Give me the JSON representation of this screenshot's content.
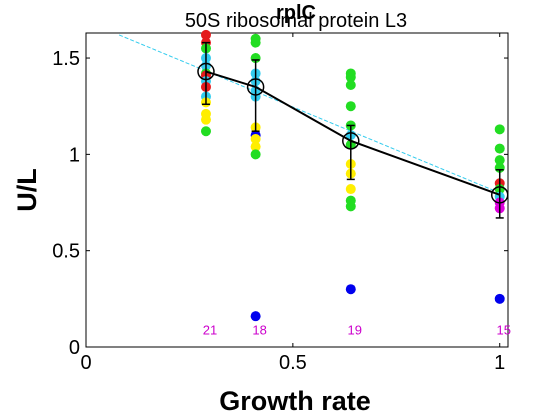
{
  "chart_data": {
    "type": "scatter",
    "title": "rplC",
    "subtitle": "50S ribosomal protein L3",
    "xlabel": "Growth rate",
    "ylabel": "U/L",
    "xlim": [
      0,
      1.02
    ],
    "ylim": [
      0,
      1.63
    ],
    "xticks": [
      {
        "value": 0,
        "label": "0"
      },
      {
        "value": 0.5,
        "label": "0.5"
      },
      {
        "value": 1,
        "label": "1"
      }
    ],
    "yticks": [
      {
        "value": 0,
        "label": "0"
      },
      {
        "value": 0.5,
        "label": "0.5"
      },
      {
        "value": 1,
        "label": "1"
      },
      {
        "value": 1.5,
        "label": "1.5"
      }
    ],
    "grid": false,
    "colors": {
      "red": "#e41a1c",
      "cyan": "#33ccee",
      "yellow": "#ffee00",
      "green": "#22dd22",
      "blue": "#0000ee",
      "magenta": "#dd00dd",
      "mean_line": "#000000",
      "fit_line": "#33ccee",
      "count_text": "#cc00cc"
    },
    "points": [
      {
        "x": 0.29,
        "y": 1.62,
        "color": "red"
      },
      {
        "x": 0.29,
        "y": 1.58,
        "color": "red"
      },
      {
        "x": 0.29,
        "y": 1.55,
        "color": "green"
      },
      {
        "x": 0.29,
        "y": 1.5,
        "color": "cyan"
      },
      {
        "x": 0.29,
        "y": 1.46,
        "color": "cyan"
      },
      {
        "x": 0.29,
        "y": 1.42,
        "color": "green"
      },
      {
        "x": 0.29,
        "y": 1.41,
        "color": "red"
      },
      {
        "x": 0.29,
        "y": 1.38,
        "color": "cyan"
      },
      {
        "x": 0.29,
        "y": 1.35,
        "color": "red"
      },
      {
        "x": 0.29,
        "y": 1.3,
        "color": "cyan"
      },
      {
        "x": 0.29,
        "y": 1.27,
        "color": "yellow"
      },
      {
        "x": 0.29,
        "y": 1.21,
        "color": "yellow"
      },
      {
        "x": 0.29,
        "y": 1.18,
        "color": "yellow"
      },
      {
        "x": 0.29,
        "y": 1.12,
        "color": "green"
      },
      {
        "x": 0.41,
        "y": 1.6,
        "color": "green"
      },
      {
        "x": 0.41,
        "y": 1.58,
        "color": "green"
      },
      {
        "x": 0.41,
        "y": 1.5,
        "color": "green"
      },
      {
        "x": 0.41,
        "y": 1.42,
        "color": "cyan"
      },
      {
        "x": 0.41,
        "y": 1.38,
        "color": "cyan"
      },
      {
        "x": 0.41,
        "y": 1.33,
        "color": "cyan"
      },
      {
        "x": 0.41,
        "y": 1.3,
        "color": "cyan"
      },
      {
        "x": 0.41,
        "y": 1.14,
        "color": "yellow"
      },
      {
        "x": 0.41,
        "y": 1.1,
        "color": "blue"
      },
      {
        "x": 0.41,
        "y": 1.08,
        "color": "yellow"
      },
      {
        "x": 0.41,
        "y": 1.04,
        "color": "yellow"
      },
      {
        "x": 0.41,
        "y": 1.0,
        "color": "green"
      },
      {
        "x": 0.41,
        "y": 0.16,
        "color": "blue"
      },
      {
        "x": 0.64,
        "y": 1.42,
        "color": "green"
      },
      {
        "x": 0.64,
        "y": 1.4,
        "color": "green"
      },
      {
        "x": 0.64,
        "y": 1.36,
        "color": "green"
      },
      {
        "x": 0.64,
        "y": 1.25,
        "color": "green"
      },
      {
        "x": 0.64,
        "y": 1.15,
        "color": "green"
      },
      {
        "x": 0.64,
        "y": 1.1,
        "color": "cyan"
      },
      {
        "x": 0.64,
        "y": 1.05,
        "color": "green"
      },
      {
        "x": 0.64,
        "y": 0.95,
        "color": "yellow"
      },
      {
        "x": 0.64,
        "y": 0.9,
        "color": "yellow"
      },
      {
        "x": 0.64,
        "y": 0.82,
        "color": "yellow"
      },
      {
        "x": 0.64,
        "y": 0.76,
        "color": "green"
      },
      {
        "x": 0.64,
        "y": 0.73,
        "color": "green"
      },
      {
        "x": 0.64,
        "y": 0.3,
        "color": "blue"
      },
      {
        "x": 1.0,
        "y": 1.13,
        "color": "green"
      },
      {
        "x": 1.0,
        "y": 1.03,
        "color": "green"
      },
      {
        "x": 1.0,
        "y": 0.97,
        "color": "green"
      },
      {
        "x": 1.0,
        "y": 0.93,
        "color": "green"
      },
      {
        "x": 1.0,
        "y": 0.85,
        "color": "red"
      },
      {
        "x": 1.0,
        "y": 0.82,
        "color": "green"
      },
      {
        "x": 1.0,
        "y": 0.78,
        "color": "cyan"
      },
      {
        "x": 1.0,
        "y": 0.75,
        "color": "magenta"
      },
      {
        "x": 1.0,
        "y": 0.72,
        "color": "magenta"
      },
      {
        "x": 1.0,
        "y": 0.25,
        "color": "blue"
      }
    ],
    "means": [
      {
        "x": 0.29,
        "y": 1.43,
        "err_low": 1.26,
        "err_high": 1.58
      },
      {
        "x": 0.41,
        "y": 1.35,
        "err_low": 1.12,
        "err_high": 1.49
      },
      {
        "x": 0.64,
        "y": 1.07,
        "err_low": 0.87,
        "err_high": 1.15
      },
      {
        "x": 1.0,
        "y": 0.79,
        "err_low": 0.67,
        "err_high": 0.92
      }
    ],
    "fit_line": {
      "x": [
        0.08,
        1.0
      ],
      "y": [
        1.62,
        0.8
      ]
    },
    "counts": [
      {
        "x": 0.29,
        "label": "21"
      },
      {
        "x": 0.41,
        "label": "18"
      },
      {
        "x": 0.64,
        "label": "19"
      },
      {
        "x": 1.0,
        "label": "15"
      }
    ],
    "count_y": 0.09
  }
}
